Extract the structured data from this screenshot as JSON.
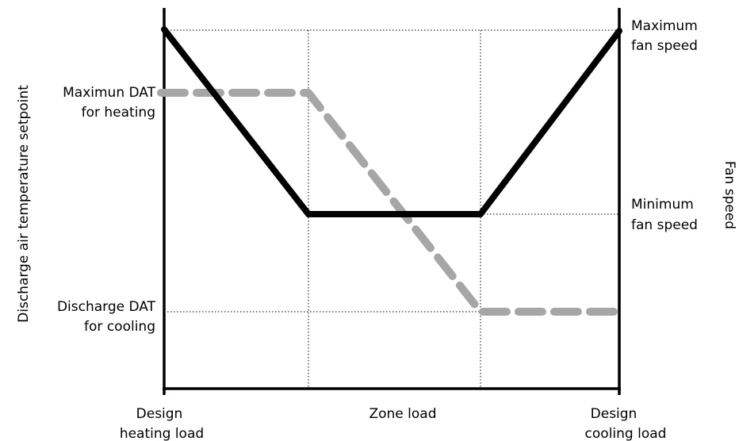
{
  "labels": {
    "left_axis": "Discharge air temperature setpoint",
    "right_axis": "Fan speed",
    "bottom_center": "Zone load",
    "bottom_left": [
      "Design",
      "heating load"
    ],
    "bottom_right": [
      "Design",
      "cooling load"
    ],
    "left_upper": [
      "Maximun DAT",
      "for heating"
    ],
    "left_lower": [
      "Discharge DAT",
      "for cooling"
    ],
    "right_upper": [
      "Maximum",
      "fan speed"
    ],
    "right_lower": [
      "Minimum",
      "fan speed"
    ]
  },
  "colors": {
    "fan_speed_line": "#000000",
    "dat_line": "#a6a6a6",
    "grid": "#000000"
  }
}
